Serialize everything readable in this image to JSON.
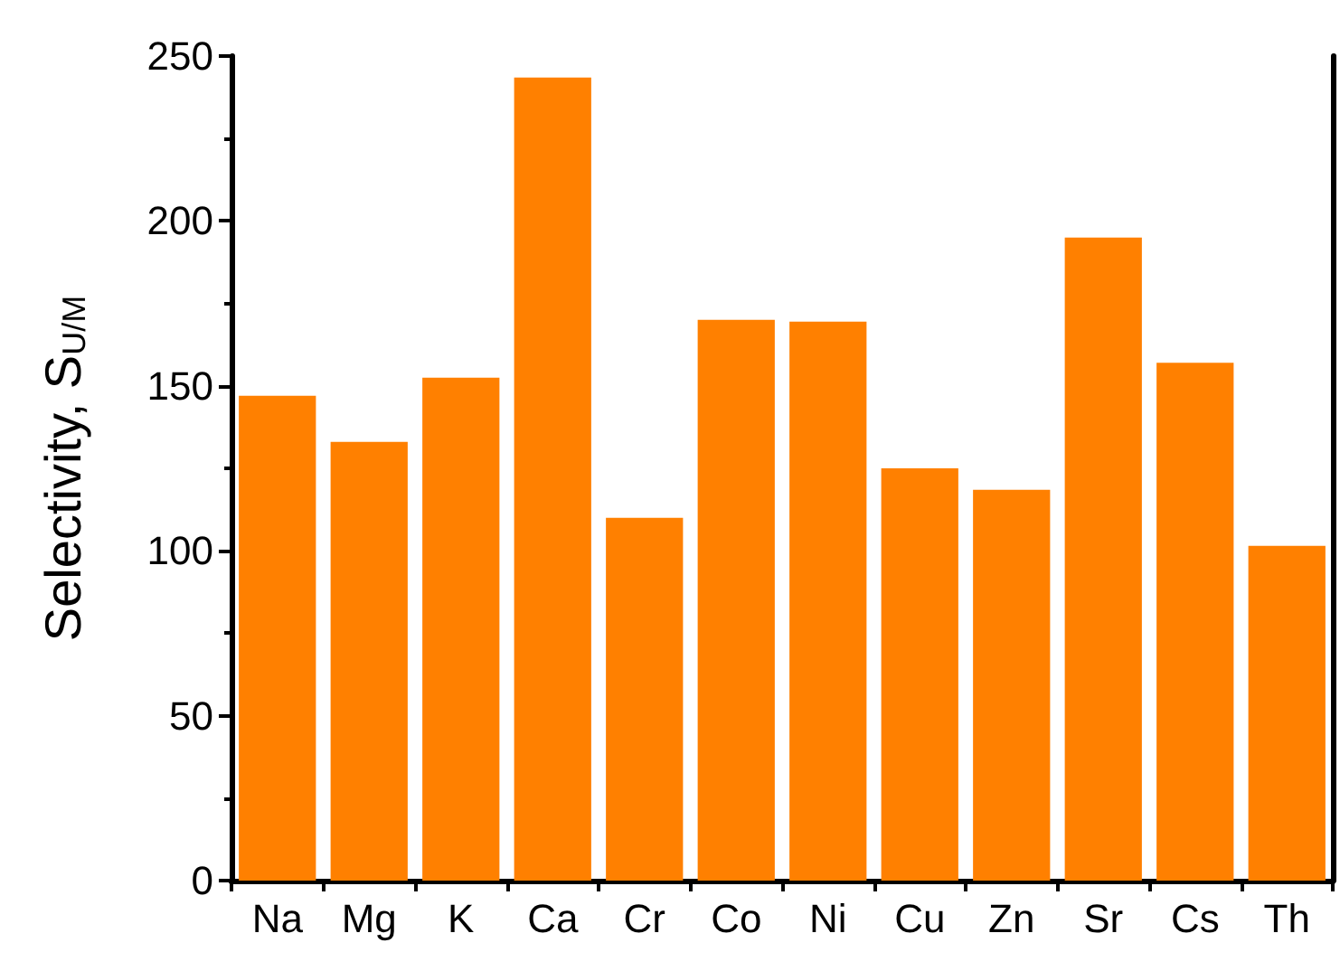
{
  "chart_data": {
    "type": "bar",
    "ylabel": "Selectivity, S$_{U/M}$",
    "categories": [
      "Na",
      "Mg",
      "K",
      "Ca",
      "Cr",
      "Co",
      "Ni",
      "Cu",
      "Zn",
      "Sr",
      "Cs",
      "Th"
    ],
    "values": [
      147,
      133,
      152.5,
      243.5,
      110,
      170,
      169.5,
      125,
      118.5,
      195,
      157,
      101.5
    ],
    "color": "#ff8000",
    "ylim": [
      0,
      250
    ],
    "yticks": [
      0,
      50,
      100,
      150,
      200,
      250
    ],
    "grid": false
  }
}
